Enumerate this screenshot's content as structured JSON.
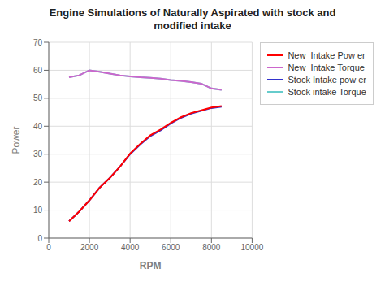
{
  "chart_data": {
    "type": "line",
    "title": "Engine Simulations of Naturally Aspirated with stock and\nmodified intake",
    "x_label": "RPM",
    "y_label": "Power",
    "x": [
      1000,
      1500,
      2000,
      2500,
      3000,
      3500,
      4000,
      4500,
      5000,
      5500,
      6000,
      6500,
      7000,
      7500,
      8000,
      8500
    ],
    "xlim": [
      0,
      10000
    ],
    "xticks": [
      0,
      2000,
      4000,
      6000,
      8000,
      10000
    ],
    "ylim": [
      0,
      70
    ],
    "yticks": [
      0,
      10,
      20,
      30,
      40,
      50,
      60,
      70
    ],
    "grid": true,
    "legend": "right",
    "series": [
      {
        "name": "New  Intake Pow er",
        "color": "#ff0000",
        "values": [
          6.0,
          9.5,
          13.5,
          18.0,
          21.5,
          25.5,
          30.2,
          33.7,
          36.8,
          38.8,
          41.2,
          43.2,
          44.7,
          45.7,
          46.7,
          47.2
        ]
      },
      {
        "name": "New  Intake Torque",
        "color": "#cc66cc",
        "values": [
          57.5,
          58.2,
          60.0,
          59.5,
          58.8,
          58.2,
          57.8,
          57.5,
          57.3,
          57.0,
          56.5,
          56.2,
          55.8,
          55.2,
          53.5,
          53.0
        ]
      },
      {
        "name": "Stock Intake pow er",
        "color": "#3333cc",
        "values": [
          6.0,
          9.5,
          13.5,
          18.0,
          21.5,
          25.5,
          30.0,
          33.5,
          36.5,
          38.5,
          41.0,
          43.0,
          44.5,
          45.5,
          46.5,
          47.0
        ]
      },
      {
        "name": "Stock intake Torque",
        "color": "#66cccc",
        "values": [
          57.5,
          58.2,
          60.0,
          59.5,
          58.8,
          58.2,
          57.8,
          57.5,
          57.3,
          57.0,
          56.5,
          56.2,
          55.8,
          55.2,
          53.5,
          53.0
        ]
      }
    ]
  }
}
